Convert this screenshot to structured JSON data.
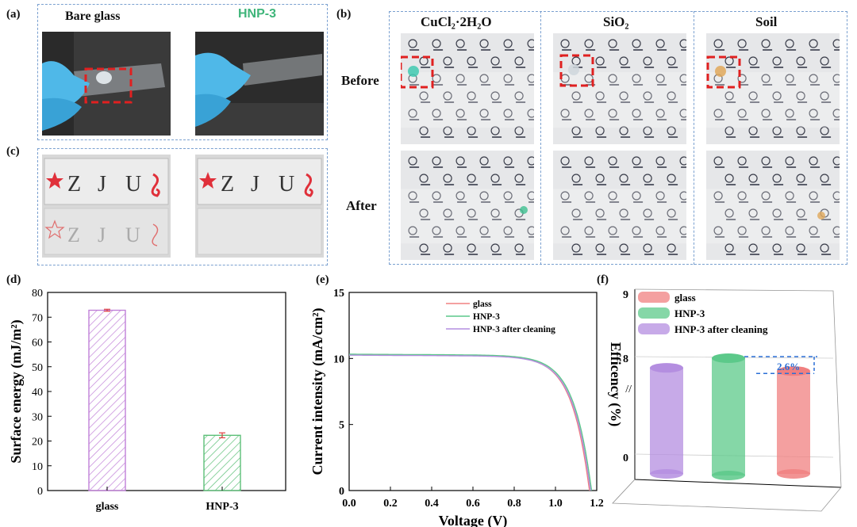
{
  "panels": {
    "a": {
      "label": "(a)",
      "left_title": "Bare glass",
      "right_title": "HNP-3",
      "right_title_color": "#3fb57a"
    },
    "b": {
      "label": "(b)",
      "columns": [
        "CuCl₂·2H₂O",
        "SiO₂",
        "Soil"
      ],
      "rows": [
        "Before",
        "After"
      ]
    },
    "c": {
      "label": "(c)",
      "letters": [
        "Z",
        "J",
        "U"
      ]
    },
    "d": {
      "label": "(d)"
    },
    "e": {
      "label": "(e)"
    },
    "f": {
      "label": "(f)"
    }
  },
  "colors": {
    "glass": "#f08080",
    "hnp3": "#5cc98a",
    "hnp3_after": "#b48ee0",
    "bar_glass": "#c080d8",
    "bar_hnp3": "#5cbf78",
    "dashed_box": "#7aa0d0",
    "annotation": "#2a6fd6"
  },
  "chart_data": [
    {
      "id": "d",
      "type": "bar",
      "categories": [
        "glass",
        "HNP-3"
      ],
      "values": [
        72.8,
        22.3
      ],
      "errors": [
        0.4,
        1.0
      ],
      "ylabel": "Surface energy (mJ/m²)",
      "xlabel": "",
      "ylim": [
        0,
        80
      ],
      "yticks": [
        0,
        10,
        20,
        30,
        40,
        50,
        60,
        70,
        80
      ],
      "hatch": true
    },
    {
      "id": "e",
      "type": "line",
      "xlabel": "Voltage (V)",
      "ylabel": "Current intensity (mA/cm²)",
      "xlim": [
        0.0,
        1.2
      ],
      "ylim": [
        0,
        15
      ],
      "xticks": [
        0.0,
        0.2,
        0.4,
        0.6,
        0.8,
        1.0,
        1.2
      ],
      "yticks": [
        0,
        5,
        10,
        15
      ],
      "legend": "top-right",
      "series": [
        {
          "name": "glass",
          "jsc": 10.28,
          "voc": 1.165
        },
        {
          "name": "HNP-3",
          "jsc": 10.32,
          "voc": 1.175
        },
        {
          "name": "HNP-3 after cleaning",
          "jsc": 10.25,
          "voc": 1.17
        }
      ]
    },
    {
      "id": "f",
      "type": "bar",
      "categories": [
        "HNP-3 after cleaning",
        "HNP-3",
        "glass"
      ],
      "values": [
        7.85,
        8.0,
        7.8
      ],
      "series_names": [
        "glass",
        "HNP-3",
        "HNP-3 after cleaning"
      ],
      "ylabel": "Efficency (%)",
      "yticks": [
        "0",
        "8",
        "9"
      ],
      "legend": "top-left",
      "annotation": "2.6%"
    }
  ]
}
